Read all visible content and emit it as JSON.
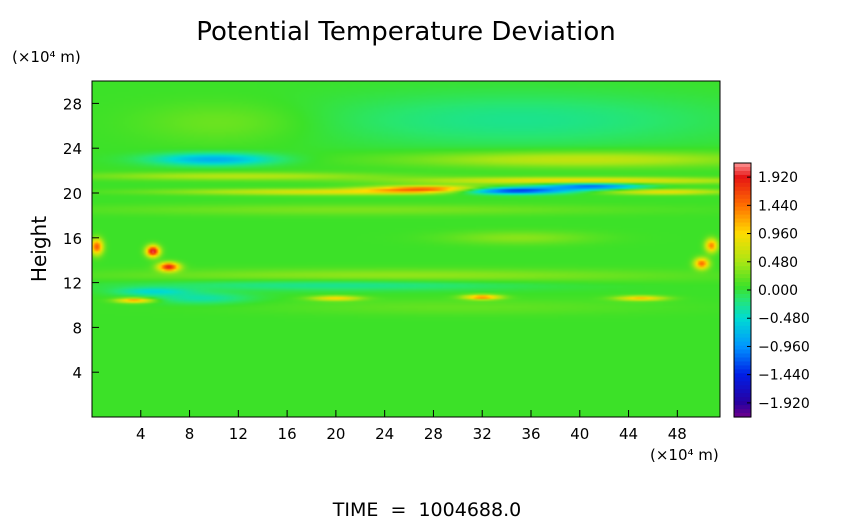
{
  "chart_data": {
    "type": "heatmap",
    "title": "Potential Temperature Deviation",
    "ylabel": "Height",
    "y_unit_label": "(×10⁴ m)",
    "x_unit_label": "(×10⁴ m)",
    "footer": "TIME  =  1004688.0",
    "xlim": [
      0,
      51.5
    ],
    "ylim": [
      0,
      30
    ],
    "x_ticks": [
      4,
      8,
      12,
      16,
      20,
      24,
      28,
      32,
      36,
      40,
      44,
      48
    ],
    "y_ticks": [
      4,
      8,
      12,
      16,
      20,
      24,
      28
    ],
    "colorbar": {
      "min": -2.16,
      "max": 2.16,
      "tick_values": [
        1.92,
        1.44,
        0.96,
        0.48,
        0.0,
        -0.48,
        -0.96,
        -1.44,
        -1.92
      ],
      "tick_labels": [
        "1.920",
        "1.440",
        "0.960",
        "0.480",
        "0.000",
        "−0.480",
        "−0.960",
        "−1.440",
        "−1.920"
      ]
    },
    "background_value": 0.05,
    "features": [
      {
        "x": 35,
        "y": 26.5,
        "sx": 17,
        "sy": 2.4,
        "v": -0.3
      },
      {
        "x": 11,
        "y": 26.3,
        "sx": 7,
        "sy": 1.8,
        "v": 0.22
      },
      {
        "x": 10,
        "y": 23.0,
        "sx": 5,
        "sy": 0.55,
        "v": -0.85
      },
      {
        "x": 40,
        "y": 23.0,
        "sx": 14,
        "sy": 0.7,
        "v": 0.6
      },
      {
        "x": 12,
        "y": 21.5,
        "sx": 12,
        "sy": 0.35,
        "v": 0.5
      },
      {
        "x": 20,
        "y": 20.1,
        "sx": 13,
        "sy": 0.28,
        "v": 0.75
      },
      {
        "x": 28,
        "y": 20.35,
        "sx": 5,
        "sy": 0.3,
        "v": 1.5
      },
      {
        "x": 34,
        "y": 20.2,
        "sx": 5,
        "sy": 0.3,
        "v": -1.8
      },
      {
        "x": 41,
        "y": 20.6,
        "sx": 4,
        "sy": 0.3,
        "v": -1.2
      },
      {
        "x": 40,
        "y": 21.1,
        "sx": 13,
        "sy": 0.3,
        "v": 0.9
      },
      {
        "x": 47,
        "y": 20.1,
        "sx": 5,
        "sy": 0.25,
        "v": 0.8
      },
      {
        "x": 22,
        "y": 18.5,
        "sx": 22,
        "sy": 0.5,
        "v": 0.25
      },
      {
        "x": 5,
        "y": 14.8,
        "sx": 0.55,
        "sy": 0.5,
        "v": 2.0
      },
      {
        "x": 6.3,
        "y": 13.4,
        "sx": 0.85,
        "sy": 0.4,
        "v": 1.8
      },
      {
        "x": 0.4,
        "y": 15.2,
        "sx": 0.5,
        "sy": 0.7,
        "v": 1.5
      },
      {
        "x": 50.8,
        "y": 15.3,
        "sx": 0.5,
        "sy": 0.6,
        "v": 1.3
      },
      {
        "x": 50.0,
        "y": 13.7,
        "sx": 0.6,
        "sy": 0.5,
        "v": 1.4
      },
      {
        "x": 25,
        "y": 12.6,
        "sx": 22,
        "sy": 0.6,
        "v": 0.35
      },
      {
        "x": 20,
        "y": 11.8,
        "sx": 16,
        "sy": 0.5,
        "v": -0.35
      },
      {
        "x": 5,
        "y": 11.2,
        "sx": 3,
        "sy": 0.35,
        "v": -0.5
      },
      {
        "x": 3.5,
        "y": 10.4,
        "sx": 1.5,
        "sy": 0.22,
        "v": 1.2
      },
      {
        "x": 20,
        "y": 10.6,
        "sx": 2,
        "sy": 0.22,
        "v": 0.9
      },
      {
        "x": 32,
        "y": 10.7,
        "sx": 1.5,
        "sy": 0.22,
        "v": 1.3
      },
      {
        "x": 45,
        "y": 10.6,
        "sx": 2,
        "sy": 0.22,
        "v": 1.0
      },
      {
        "x": 9,
        "y": 10.6,
        "sx": 4,
        "sy": 0.5,
        "v": -0.4
      },
      {
        "x": 30,
        "y": 9.8,
        "sx": 16,
        "sy": 0.7,
        "v": 0.15
      },
      {
        "x": 35,
        "y": 16.0,
        "sx": 6,
        "sy": 0.6,
        "v": 0.3
      }
    ]
  }
}
